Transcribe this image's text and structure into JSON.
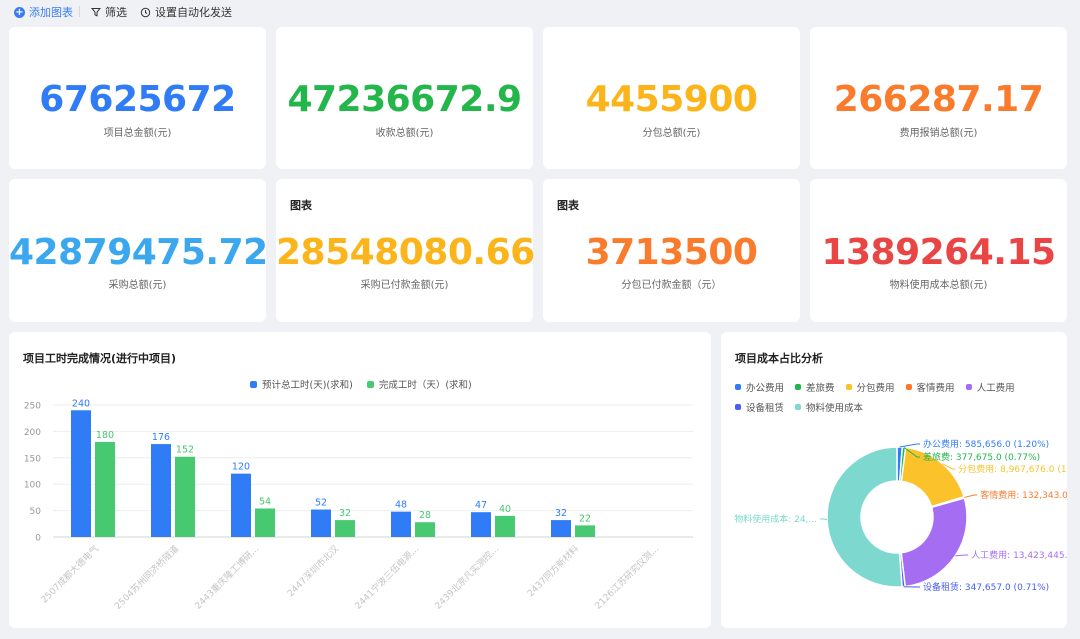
{
  "toolbar": {
    "add_chart": "添加图表",
    "filter": "筛选",
    "auto_send": "设置自动化发送"
  },
  "metrics": [
    {
      "value": "67625672",
      "label": "项目总金额(元)",
      "color": "#2f7cf6",
      "title": ""
    },
    {
      "value": "47236672.9",
      "label": "收款总额(元)",
      "color": "#23b64b",
      "title": ""
    },
    {
      "value": "4455900",
      "label": "分包总额(元)",
      "color": "#fbb41a",
      "title": ""
    },
    {
      "value": "266287.17",
      "label": "费用报销总额(元)",
      "color": "#f97b2b",
      "title": ""
    },
    {
      "value": "42879475.72",
      "label": "采购总额(元)",
      "color": "#3aa7ee",
      "title": ""
    },
    {
      "value": "28548080.66",
      "label": "采购已付款金额(元)",
      "color": "#fbb41a",
      "title": "图表"
    },
    {
      "value": "3713500",
      "label": "分包已付款金额（元）",
      "color": "#f97b2b",
      "title": "图表"
    },
    {
      "value": "1389264.15",
      "label": "物料使用成本总额(元)",
      "color": "#ea4545",
      "title": ""
    }
  ],
  "bar_panel": {
    "title": "项目工时完成情况(进行中项目)"
  },
  "pie_panel": {
    "title": "项目成本占比分析"
  },
  "chart_data": [
    {
      "type": "bar",
      "categories": [
        "2507成都大德电气",
        "2504苏州同济桥隧道",
        "2443重庆隆工博研...",
        "2447深圳市北汉",
        "2441宁波三伍电源...",
        "2439北京凡实测控...",
        "2437同方新材料",
        "2126江苏研究仪测..."
      ],
      "series": [
        {
          "name": "预计总工时(天)(求和)",
          "values": [
            240,
            176,
            120,
            52,
            48,
            47,
            32,
            0
          ],
          "labels": [
            "240",
            "176",
            "120",
            "52",
            "48",
            "47",
            "32",
            ""
          ],
          "color": "#2f7cf6"
        },
        {
          "name": "完成工时（天）(求和)",
          "values": [
            180,
            152,
            54,
            32,
            28,
            40,
            22,
            0
          ],
          "labels": [
            "180",
            "152",
            "54",
            "32",
            "28",
            "40",
            "22",
            ""
          ],
          "color": "#47c971"
        }
      ],
      "yticks": [
        "0",
        "50",
        "100",
        "150",
        "200",
        "250"
      ],
      "ylim": [
        0,
        250
      ],
      "legend": "top-center",
      "grid": true
    },
    {
      "type": "pie",
      "series": [
        {
          "name": "办公费用",
          "value": 585656.0,
          "label": "办公费用: 585,656.0 (1.20%)",
          "color": "#2f7cf6"
        },
        {
          "name": "差旅费",
          "value": 377675.0,
          "label": "差旅费: 377,675.0 (0.77%)",
          "color": "#23b64b"
        },
        {
          "name": "分包费用",
          "value": 8967676.0,
          "label": "分包费用: 8,967,676.0 (1...",
          "color": "#fbc22b"
        },
        {
          "name": "客情费用",
          "value": 132343.0,
          "label": "客情费用: 132,343.0 ...",
          "color": "#f97b2b"
        },
        {
          "name": "人工费用",
          "value": 13423445,
          "label": "人工费用: 13,423,445...",
          "color": "#a56ef2"
        },
        {
          "name": "设备租赁",
          "value": 347657.0,
          "label": "设备租赁: 347,657.0 (0.71%)",
          "color": "#4a5ef2"
        },
        {
          "name": "物料使用成本",
          "value": 24950000,
          "label": "物料使用成本: 24,...",
          "color": "#7dd9cf"
        }
      ],
      "legend_rows": [
        [
          "办公费用",
          "差旅费",
          "分包费用",
          "客情费用",
          "人工费用"
        ],
        [
          "设备租赁",
          "物料使用成本"
        ]
      ],
      "donut": true,
      "legend": "top-left"
    }
  ]
}
